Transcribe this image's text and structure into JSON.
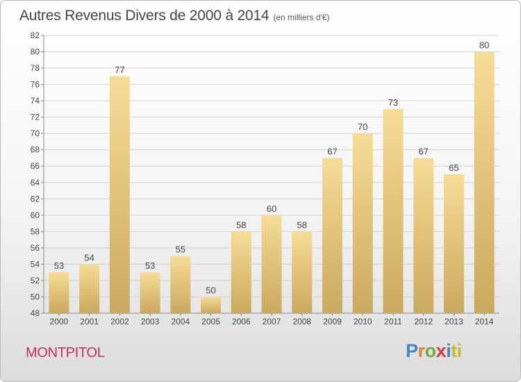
{
  "title": "Autres Revenus Divers de 2000 à 2014",
  "title_unit": "(en milliers d'€)",
  "commune": "MONTPITOL",
  "logo": [
    "P",
    "r",
    "o",
    "x",
    "i",
    "ti"
  ],
  "colors": {
    "bar_light": "#f6dc96",
    "bar_dark": "#c9a95e",
    "grid": "#d2d2d2",
    "axis": "#888888",
    "commune": "#c0305a"
  },
  "chart_data": {
    "type": "bar",
    "title": "Autres Revenus Divers de 2000 à 2014",
    "ylabel": "",
    "xlabel": "",
    "categories": [
      "2000",
      "2001",
      "2002",
      "2003",
      "2004",
      "2005",
      "2006",
      "2007",
      "2008",
      "2009",
      "2010",
      "2011",
      "2012",
      "2013",
      "2014"
    ],
    "values": [
      53,
      54,
      77,
      53,
      55,
      50,
      58,
      60,
      58,
      67,
      70,
      73,
      67,
      65,
      80
    ],
    "ylim": [
      48,
      82
    ],
    "ytick_step": 2,
    "grid": true,
    "legend": "none"
  }
}
